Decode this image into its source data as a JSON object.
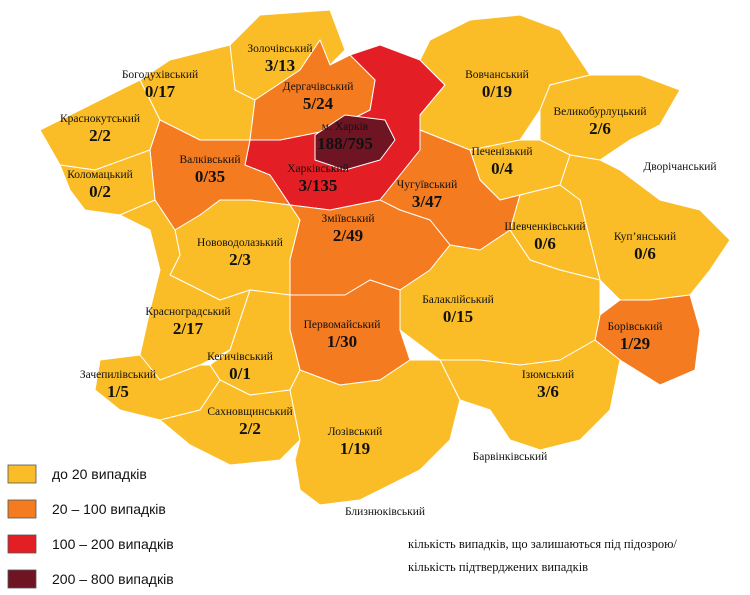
{
  "districts": [
    {
      "name": "Золочівський",
      "value": "3/13",
      "color": "#fbbd27"
    },
    {
      "name": "Богодухівський",
      "value": "0/17",
      "color": "#fbbd27"
    },
    {
      "name": "Краснокутський",
      "value": "2/2",
      "color": "#fbbd27"
    },
    {
      "name": "Харківський",
      "value": "3/135",
      "color": "#e31e25"
    },
    {
      "name": "Дергачівський",
      "value": "5/24",
      "color": "#f47b20"
    },
    {
      "name": "м. Харків",
      "value": "188/795",
      "color": "#6e1423"
    },
    {
      "name": "Вовчанський",
      "value": "0/19",
      "color": "#fbbd27"
    },
    {
      "name": "Великобурлуцький",
      "value": "2/6",
      "color": "#fbbd27"
    },
    {
      "name": "Дворічанський",
      "color": "#ffffff"
    },
    {
      "name": "Печенізький",
      "value": "0/4",
      "color": "#fbbd27"
    },
    {
      "name": "Чугуївський",
      "value": "3/47",
      "color": "#f47b20"
    },
    {
      "name": "Куп’янський",
      "value": "0/6",
      "color": "#fbbd27"
    },
    {
      "name": "Шевченківський",
      "value": "0/6",
      "color": "#fbbd27"
    },
    {
      "name": "Борівський",
      "value": "1/29",
      "color": "#f47b20"
    },
    {
      "name": "Валківський",
      "value": "0/35",
      "color": "#f47b20"
    },
    {
      "name": "Коломацький",
      "value": "0/2",
      "color": "#fbbd27"
    },
    {
      "name": "Нововодолазький",
      "value": "2/3",
      "color": "#fbbd27"
    },
    {
      "name": "Зміївський",
      "value": "2/49",
      "color": "#f47b20"
    },
    {
      "name": "Балаклійський",
      "value": "0/15",
      "color": "#fbbd27"
    },
    {
      "name": "Первомайський",
      "value": "1/30",
      "color": "#f47b20"
    },
    {
      "name": "Красноградський",
      "value": "2/17",
      "color": "#fbbd27"
    },
    {
      "name": "Кегичівський",
      "value": "0/1",
      "color": "#fbbd27"
    },
    {
      "name": "Зачепилівський",
      "value": "1/5",
      "color": "#fbbd27"
    },
    {
      "name": "Сахновщинський",
      "value": "2/2",
      "color": "#fbbd27"
    },
    {
      "name": "Лозівський",
      "value": "1/19",
      "color": "#fbbd27"
    },
    {
      "name": "Ізюмський",
      "value": "3/6",
      "color": "#fbbd27"
    },
    {
      "name": "Барвінківський",
      "color": "#ffffff"
    },
    {
      "name": "Близнюківський",
      "color": "#ffffff"
    }
  ],
  "legend": [
    {
      "label": "до 20  випадків",
      "color": "#fbbd27"
    },
    {
      "label": "20 – 100  випадків",
      "color": "#f47b20"
    },
    {
      "label": "100 – 200  випадків",
      "color": "#e31e25"
    },
    {
      "label": "200 – 800  випадків",
      "color": "#6e1423"
    }
  ],
  "note": [
    "кількість випадків, що залишаються під підозрою/",
    "кількість підтверджених випадків"
  ]
}
